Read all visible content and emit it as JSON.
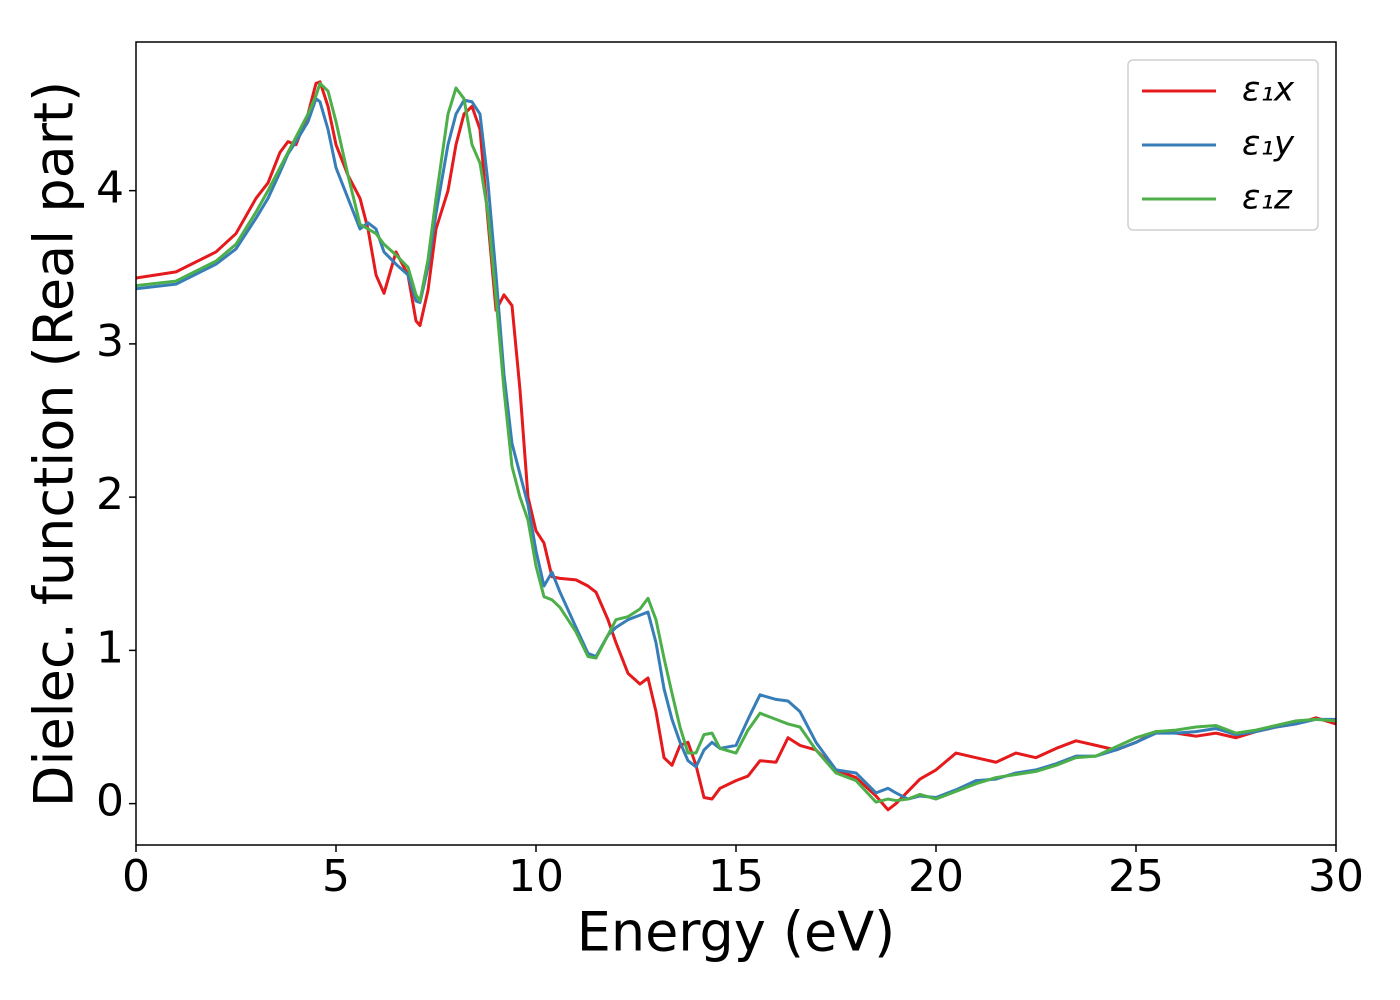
{
  "chart_data": {
    "type": "line",
    "xlabel": "Energy (eV)",
    "ylabel": "Dielec. function (Real part)",
    "x": [
      0,
      1,
      2,
      2.5,
      3,
      3.3,
      3.6,
      3.8,
      4,
      4.3,
      4.5,
      4.6,
      4.8,
      5,
      5.3,
      5.6,
      5.8,
      6,
      6.2,
      6.5,
      6.8,
      7,
      7.1,
      7.3,
      7.5,
      7.8,
      8,
      8.2,
      8.4,
      8.6,
      8.8,
      9,
      9.2,
      9.4,
      9.6,
      9.8,
      10,
      10.2,
      10.4,
      10.6,
      11,
      11.3,
      11.5,
      11.8,
      12,
      12.3,
      12.6,
      12.8,
      13,
      13.2,
      13.4,
      13.6,
      13.8,
      14,
      14.2,
      14.4,
      14.6,
      15,
      15.3,
      15.6,
      16,
      16.3,
      16.6,
      17,
      17.5,
      18,
      18.5,
      18.8,
      19,
      19.3,
      19.6,
      20,
      20.5,
      21,
      21.5,
      22,
      22.5,
      23,
      23.5,
      24,
      24.5,
      25,
      25.5,
      26,
      26.5,
      27,
      27.5,
      28,
      28.5,
      29,
      29.5,
      30
    ],
    "series": [
      {
        "name": "ε₁x",
        "color": "#e41a1c",
        "values": [
          3.43,
          3.47,
          3.6,
          3.72,
          3.95,
          4.05,
          4.25,
          4.32,
          4.3,
          4.5,
          4.7,
          4.71,
          4.55,
          4.3,
          4.1,
          3.95,
          3.75,
          3.45,
          3.33,
          3.6,
          3.45,
          3.15,
          3.12,
          3.35,
          3.75,
          4.0,
          4.3,
          4.5,
          4.55,
          4.4,
          3.8,
          3.22,
          3.32,
          3.25,
          2.7,
          2.0,
          1.78,
          1.7,
          1.48,
          1.47,
          1.46,
          1.42,
          1.38,
          1.2,
          1.05,
          0.85,
          0.78,
          0.82,
          0.6,
          0.3,
          0.25,
          0.38,
          0.4,
          0.25,
          0.04,
          0.03,
          0.1,
          0.15,
          0.18,
          0.28,
          0.27,
          0.43,
          0.38,
          0.35,
          0.22,
          0.17,
          0.05,
          -0.04,
          0.0,
          0.08,
          0.16,
          0.22,
          0.33,
          0.3,
          0.27,
          0.33,
          0.3,
          0.36,
          0.41,
          0.38,
          0.35,
          0.4,
          0.47,
          0.46,
          0.44,
          0.46,
          0.43,
          0.47,
          0.5,
          0.52,
          0.56,
          0.52
        ]
      },
      {
        "name": "ε₁y",
        "color": "#377eb8",
        "values": [
          3.36,
          3.39,
          3.52,
          3.62,
          3.82,
          3.95,
          4.12,
          4.24,
          4.32,
          4.45,
          4.6,
          4.58,
          4.4,
          4.15,
          3.95,
          3.75,
          3.79,
          3.75,
          3.6,
          3.52,
          3.45,
          3.28,
          3.27,
          3.5,
          3.85,
          4.3,
          4.5,
          4.59,
          4.58,
          4.5,
          4.05,
          3.45,
          2.8,
          2.35,
          2.15,
          1.95,
          1.65,
          1.42,
          1.51,
          1.38,
          1.15,
          0.98,
          0.96,
          1.1,
          1.15,
          1.2,
          1.23,
          1.25,
          1.05,
          0.75,
          0.55,
          0.4,
          0.28,
          0.24,
          0.35,
          0.4,
          0.36,
          0.38,
          0.55,
          0.71,
          0.68,
          0.67,
          0.6,
          0.4,
          0.22,
          0.2,
          0.07,
          0.1,
          0.07,
          0.03,
          0.05,
          0.04,
          0.09,
          0.15,
          0.16,
          0.2,
          0.22,
          0.26,
          0.31,
          0.31,
          0.35,
          0.4,
          0.46,
          0.46,
          0.47,
          0.49,
          0.45,
          0.47,
          0.5,
          0.52,
          0.55,
          0.55
        ]
      },
      {
        "name": "ε₁z",
        "color": "#4daf4a",
        "values": [
          3.38,
          3.41,
          3.54,
          3.65,
          3.86,
          4.0,
          4.15,
          4.25,
          4.35,
          4.5,
          4.62,
          4.7,
          4.65,
          4.45,
          4.1,
          3.78,
          3.75,
          3.72,
          3.65,
          3.58,
          3.5,
          3.32,
          3.28,
          3.55,
          3.95,
          4.5,
          4.67,
          4.6,
          4.3,
          4.18,
          3.85,
          3.3,
          2.7,
          2.2,
          2.0,
          1.85,
          1.55,
          1.35,
          1.33,
          1.28,
          1.12,
          0.96,
          0.95,
          1.1,
          1.2,
          1.22,
          1.27,
          1.34,
          1.2,
          0.95,
          0.72,
          0.5,
          0.33,
          0.33,
          0.45,
          0.46,
          0.36,
          0.33,
          0.48,
          0.59,
          0.55,
          0.52,
          0.5,
          0.35,
          0.2,
          0.15,
          0.01,
          0.03,
          0.02,
          0.03,
          0.06,
          0.03,
          0.08,
          0.13,
          0.17,
          0.19,
          0.21,
          0.25,
          0.3,
          0.31,
          0.37,
          0.43,
          0.47,
          0.48,
          0.5,
          0.51,
          0.46,
          0.48,
          0.51,
          0.54,
          0.55,
          0.54
        ]
      }
    ],
    "xlim": [
      0,
      30
    ],
    "xticks": [
      0,
      5,
      10,
      15,
      20,
      25,
      30
    ],
    "ylim": [
      -0.27,
      4.97
    ],
    "yticks": [
      0,
      1,
      2,
      3,
      4
    ],
    "legend": "upper right"
  }
}
